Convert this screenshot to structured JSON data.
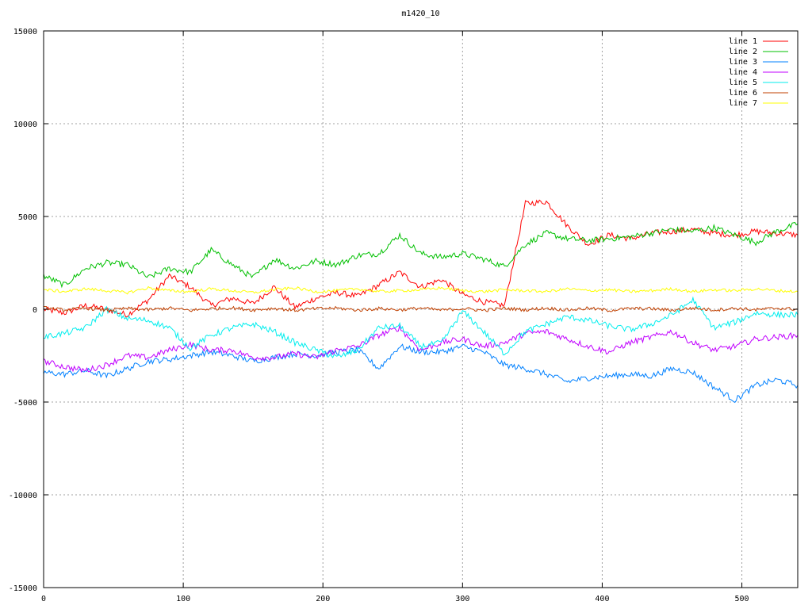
{
  "chart_data": {
    "type": "line",
    "title": "m1420_10",
    "xlabel": "",
    "ylabel": "",
    "xlim": [
      0,
      540
    ],
    "ylim": [
      -15000,
      15000
    ],
    "x_ticks": [
      0,
      100,
      200,
      300,
      400,
      500
    ],
    "y_ticks": [
      -15000,
      -10000,
      -5000,
      0,
      5000,
      10000,
      15000
    ],
    "grid": true,
    "legend_position": "top-right",
    "x": [
      0,
      15,
      30,
      45,
      60,
      75,
      90,
      105,
      120,
      135,
      150,
      165,
      180,
      195,
      210,
      225,
      240,
      255,
      270,
      285,
      300,
      315,
      330,
      345,
      360,
      375,
      390,
      405,
      420,
      435,
      450,
      465,
      480,
      495,
      510,
      525,
      540
    ],
    "series": [
      {
        "name": "line 1",
        "color": "#ff0000",
        "values": [
          0,
          -200,
          200,
          0,
          -300,
          500,
          1800,
          1200,
          200,
          600,
          300,
          1200,
          100,
          600,
          900,
          700,
          1300,
          2000,
          1200,
          1600,
          800,
          400,
          200,
          5700,
          5800,
          4500,
          3500,
          4000,
          3800,
          4100,
          4200,
          4300,
          4100,
          4000,
          4200,
          4100,
          4000
        ]
      },
      {
        "name": "line 2",
        "color": "#00c000",
        "values": [
          1800,
          1300,
          2200,
          2500,
          2400,
          1700,
          2200,
          2000,
          3200,
          2400,
          1700,
          2700,
          2200,
          2600,
          2400,
          2900,
          3000,
          4000,
          3000,
          2800,
          3000,
          2700,
          2300,
          3500,
          4100,
          3800,
          3700,
          3800,
          3900,
          4100,
          4300,
          4200,
          4400,
          4000,
          3600,
          4200,
          4600
        ]
      },
      {
        "name": "line 3",
        "color": "#0080ff",
        "values": [
          -3400,
          -3500,
          -3300,
          -3600,
          -3200,
          -2800,
          -2700,
          -2500,
          -2300,
          -2500,
          -2800,
          -2600,
          -2400,
          -2500,
          -2300,
          -2200,
          -3200,
          -2000,
          -2300,
          -2300,
          -2000,
          -2300,
          -3000,
          -3200,
          -3500,
          -3900,
          -3700,
          -3600,
          -3500,
          -3600,
          -3200,
          -3400,
          -4200,
          -4900,
          -4100,
          -3800,
          -4100
        ]
      },
      {
        "name": "line 4",
        "color": "#c000ff",
        "values": [
          -2800,
          -3100,
          -3300,
          -3000,
          -2500,
          -2600,
          -2200,
          -1900,
          -2200,
          -2200,
          -2600,
          -2600,
          -2400,
          -2600,
          -2200,
          -2000,
          -1400,
          -1000,
          -2200,
          -1800,
          -1600,
          -2000,
          -1800,
          -1300,
          -1200,
          -1600,
          -2000,
          -2300,
          -1800,
          -1500,
          -1200,
          -1800,
          -2200,
          -2000,
          -1600,
          -1500,
          -1400
        ]
      },
      {
        "name": "line 5",
        "color": "#00eeee",
        "values": [
          -1500,
          -1300,
          -1000,
          0,
          -500,
          -600,
          -1000,
          -2100,
          -1400,
          -1000,
          -800,
          -1200,
          -1800,
          -2200,
          -2600,
          -2200,
          -1000,
          -900,
          -2000,
          -1800,
          -100,
          -1200,
          -2400,
          -1200,
          -800,
          -400,
          -600,
          -900,
          -1100,
          -800,
          -300,
          500,
          -1000,
          -700,
          -200,
          -300,
          -300
        ]
      },
      {
        "name": "line 6",
        "color": "#c04000",
        "values": [
          80,
          -40,
          60,
          -50,
          40,
          -30,
          60,
          -60,
          30,
          70,
          -40,
          50,
          -60,
          30,
          60,
          -50,
          40,
          -30,
          60,
          -50,
          40,
          -60,
          50,
          -30,
          60,
          -40,
          50,
          -60,
          40,
          30,
          -50,
          60,
          -40,
          50,
          -30,
          60,
          0
        ]
      },
      {
        "name": "line 7",
        "color": "#ffff00",
        "values": [
          1050,
          950,
          1100,
          1000,
          900,
          1150,
          1000,
          950,
          1100,
          1000,
          900,
          1050,
          1150,
          950,
          1000,
          1100,
          950,
          1000,
          1050,
          1150,
          1000,
          950,
          1050,
          1000,
          950,
          1100,
          1000,
          1050,
          950,
          1000,
          1100,
          950,
          1050,
          1000,
          1100,
          1000,
          950
        ]
      }
    ]
  }
}
